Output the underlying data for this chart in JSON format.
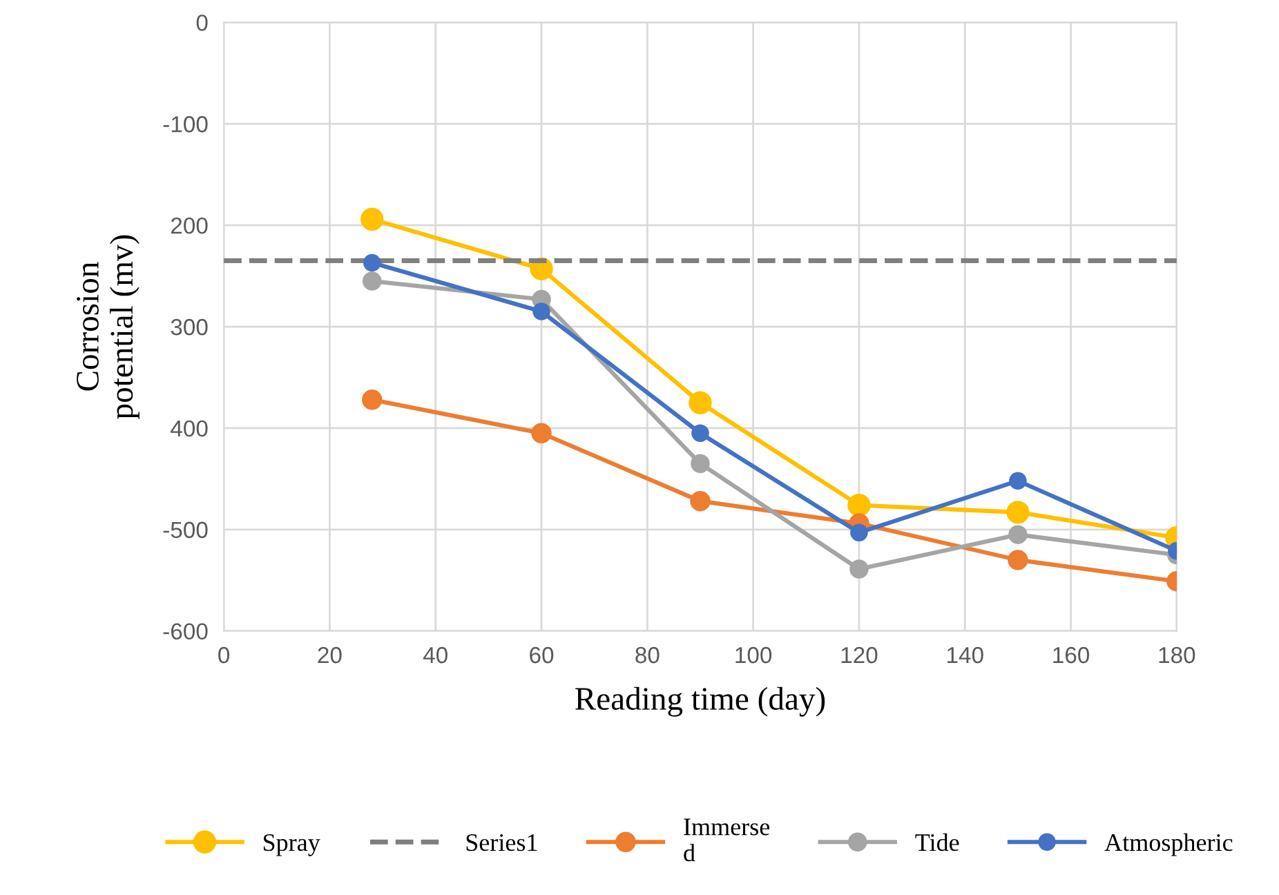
{
  "chart_data": {
    "type": "line",
    "xlabel": "Reading time (day)",
    "ylabel": "Corrosion\npotential (mv)",
    "x": [
      28,
      60,
      90,
      120,
      150,
      180
    ],
    "series": [
      {
        "name": "Spray",
        "color": "#ffc000",
        "values": [
          -194,
          -243,
          -375,
          -476,
          -483,
          -508
        ]
      },
      {
        "name": "Series1",
        "color": "#7f7f7f",
        "x": [
          0,
          180
        ],
        "values": [
          -235,
          -235
        ],
        "line_style": "dashed",
        "marker": "none"
      },
      {
        "name": "Immerse\nd",
        "color": "#ed7d31",
        "values": [
          -372,
          -405,
          -472,
          -494,
          -530,
          -551
        ]
      },
      {
        "name": "Tide",
        "color": "#a5a5a5",
        "values": [
          -255,
          -273,
          -435,
          -539,
          -505,
          -525
        ]
      },
      {
        "name": "Atmospheric",
        "color": "#4472c4",
        "values": [
          -237,
          -285,
          -405,
          -503,
          -452,
          -521
        ]
      }
    ],
    "xlim": [
      0,
      180
    ],
    "xticks": [
      0,
      20,
      40,
      60,
      80,
      100,
      120,
      140,
      160,
      180
    ],
    "ylim": [
      -600,
      0
    ],
    "yticks": [
      0,
      {
        "value": -100,
        "label": "-100"
      },
      {
        "value": -200,
        "label": "200"
      },
      {
        "value": -300,
        "label": "300"
      },
      {
        "value": -400,
        "label": "400"
      },
      {
        "value": -500,
        "label": "-500"
      },
      {
        "value": -600,
        "label": "-600"
      }
    ],
    "grid": true,
    "legend": "bottom",
    "marker": "circle",
    "line_style": "solid"
  }
}
